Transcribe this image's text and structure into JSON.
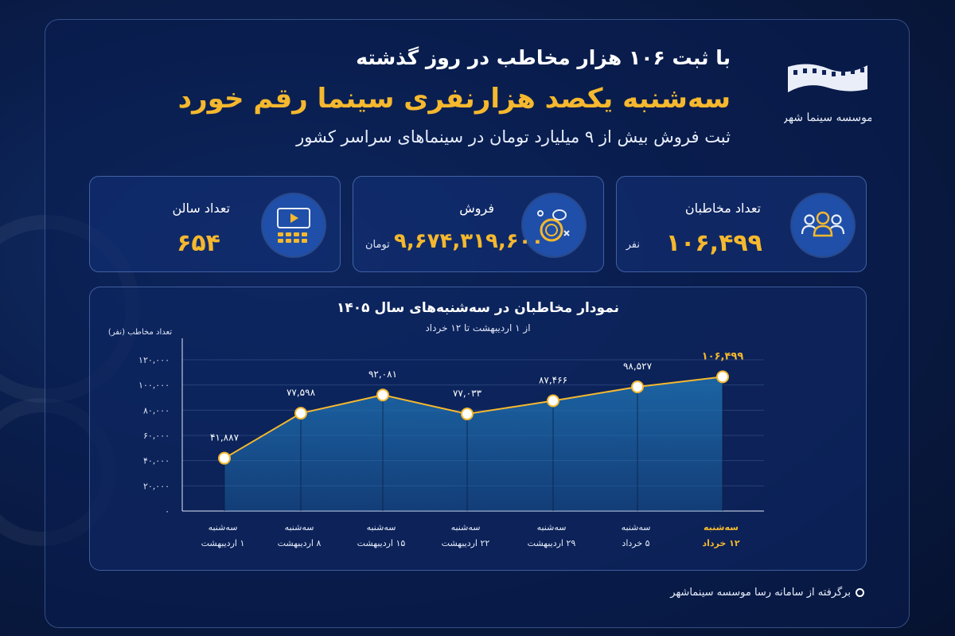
{
  "header": {
    "line1": "با ثبت ۱۰۶ هزار مخاطب در روز گذشته",
    "line2": "سه‌شنبه یکصد هزارنفری سینما رقم خورد",
    "line3": "ثبت فروش بیش از ۹ میلیارد تومان در سینماهای سراسر کشور"
  },
  "logo": {
    "text": "موسسه سینما شهر"
  },
  "cards": {
    "audience": {
      "label": "تعداد مخاطبان",
      "value": "۱۰۶,۴۹۹",
      "unit": "نفر",
      "icon": "people-icon"
    },
    "sales": {
      "label": "فروش",
      "value": "۹,۶۷۴,۳۱۹,۶۰۰",
      "unit": "تومان",
      "icon": "coins-icon"
    },
    "halls": {
      "label": "تعداد سالن",
      "value": "۶۵۴",
      "icon": "cinema-hall-icon"
    }
  },
  "chart_data": {
    "type": "area",
    "title": "نمودار مخاطبان در سه‌شنبه‌های سال ۱۴۰۵",
    "subtitle": "از ۱ اردیبهشت تا ۱۲ خرداد",
    "ylabel": "تعداد مخاطب (نفر)",
    "ylim": [
      0,
      120000
    ],
    "yticks": [
      0,
      20000,
      40000,
      60000,
      80000,
      100000,
      120000
    ],
    "ytick_labels": [
      "۰",
      "۲۰,۰۰۰",
      "۴۰,۰۰۰",
      "۶۰,۰۰۰",
      "۸۰,۰۰۰",
      "۱۰۰,۰۰۰",
      "۱۲۰,۰۰۰"
    ],
    "categories": [
      [
        "سه‌شنبه",
        "۱ اردیبهشت"
      ],
      [
        "سه‌شنبه",
        "۸ اردیبهشت"
      ],
      [
        "سه‌شنبه",
        "۱۵ اردیبهشت"
      ],
      [
        "سه‌شنبه",
        "۲۲ اردیبهشت"
      ],
      [
        "سه‌شنبه",
        "۲۹ اردیبهشت"
      ],
      [
        "سه‌شنبه",
        "۵ خرداد"
      ],
      [
        "سه‌شنبه",
        "۱۲ خرداد"
      ]
    ],
    "values": [
      41887,
      77598,
      92081,
      77033,
      87466,
      98527,
      106499
    ],
    "value_labels": [
      "۴۱,۸۸۷",
      "۷۷,۵۹۸",
      "۹۲,۰۸۱",
      "۷۷,۰۳۳",
      "۸۷,۴۶۶",
      "۹۸,۵۲۷",
      "۱۰۶,۴۹۹"
    ],
    "highlight_index": 6,
    "grid": true,
    "colors": {
      "line": "#f5b82e",
      "highlight": "#f5b82e",
      "area": "#1f6fb0"
    }
  },
  "footer": {
    "source": "برگرفته از سامانه رسا موسسه سینماشهر"
  }
}
